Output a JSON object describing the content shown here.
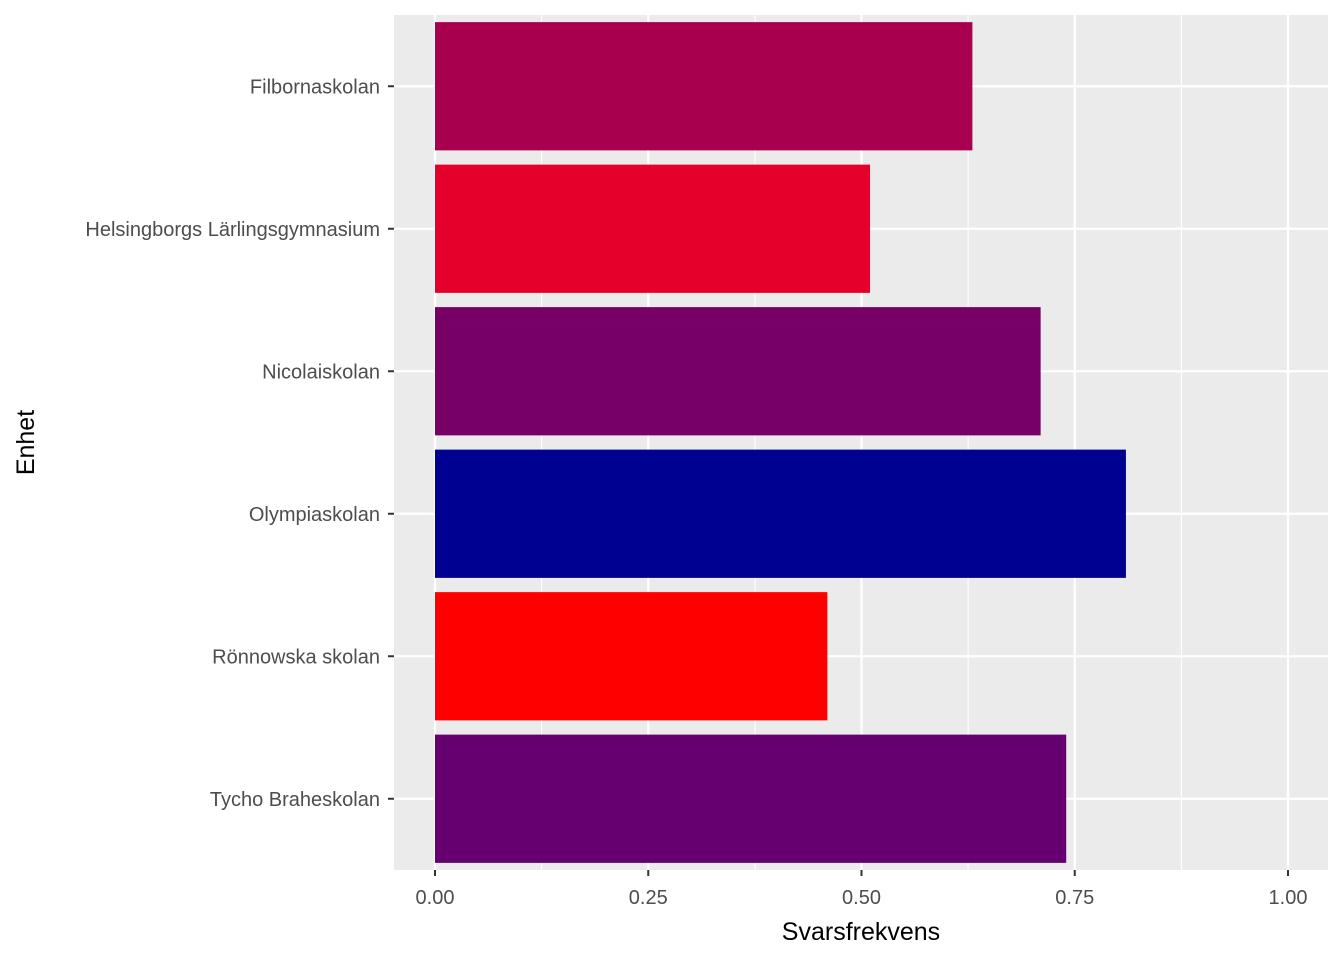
{
  "chart_data": {
    "type": "bar",
    "orientation": "horizontal",
    "title": "",
    "xlabel": "Svarsfrekvens",
    "ylabel": "Enhet",
    "xlim": [
      0,
      1
    ],
    "x_ticks": [
      0,
      0.25,
      0.5,
      0.75,
      1.0
    ],
    "x_tick_labels": [
      "0.00",
      "0.25",
      "0.50",
      "0.75",
      "1.00"
    ],
    "grid": true,
    "background": "#ebebeb",
    "gridline_color": "#ffffff",
    "categories": [
      "Filbornaskolan",
      "Helsingborgs Lärlingsgymnasium",
      "Nicolaiskolan",
      "Olympiaskolan",
      "Rönnowska skolan",
      "Tycho Braheskolan"
    ],
    "values": [
      0.63,
      0.51,
      0.71,
      0.81,
      0.46,
      0.74
    ],
    "colors": [
      "#a8004f",
      "#e4002b",
      "#770066",
      "#000091",
      "#ff0000",
      "#660070"
    ]
  }
}
